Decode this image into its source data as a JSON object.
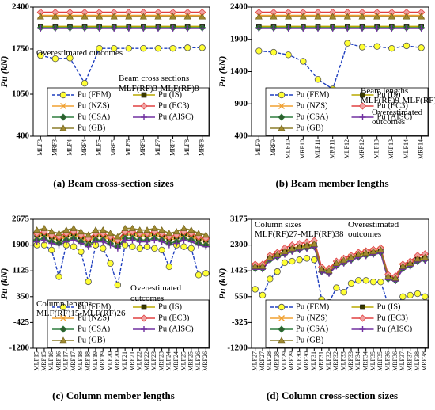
{
  "chart_data": [
    {
      "type": "line",
      "caption": "(a) Beam cross-section sizes",
      "y_label": "Pu (kN)",
      "categories": [
        "MLF3",
        "MRF3",
        "MLF4",
        "MRF4",
        "MLF5",
        "MRF5",
        "MLF6",
        "MRF6",
        "MLF7",
        "MRF7",
        "MLF8",
        "MRF8"
      ],
      "ylim": [
        400,
        2400
      ],
      "yticks": [
        400,
        1050,
        1750,
        2400
      ],
      "annotations": [
        "Overestimated outcomes",
        "Beam cross sections",
        "MLF(RF)3-MLF(RF)8"
      ],
      "series": [
        {
          "name": "Pu (FEM)",
          "color": "#1f3fbf",
          "marker": "circle",
          "values": [
            1650,
            1600,
            1610,
            1220,
            1760,
            1760,
            1760,
            1760,
            1760,
            1760,
            1770,
            1770
          ]
        },
        {
          "name": "Pu (IS)",
          "color": "#b8a800",
          "marker": "square",
          "values": [
            2100,
            2100,
            2100,
            2100,
            2100,
            2100,
            2100,
            2100,
            2100,
            2100,
            2100,
            2100
          ]
        },
        {
          "name": "Pu (NZS)",
          "color": "#f0a030",
          "marker": "x",
          "values": [
            2270,
            2270,
            2270,
            2270,
            2270,
            2270,
            2270,
            2270,
            2270,
            2270,
            2270,
            2270
          ]
        },
        {
          "name": "Pu (EC3)",
          "color": "#e04040",
          "marker": "diamond",
          "values": [
            2320,
            2320,
            2320,
            2320,
            2320,
            2320,
            2320,
            2320,
            2320,
            2320,
            2320,
            2320
          ]
        },
        {
          "name": "Pu (CSA)",
          "color": "#2e7d3e",
          "marker": "diamond",
          "values": [
            2080,
            2080,
            2080,
            2080,
            2080,
            2080,
            2080,
            2080,
            2080,
            2080,
            2080,
            2080
          ]
        },
        {
          "name": "Pu (AISC)",
          "color": "#7030a0",
          "marker": "plus",
          "values": [
            2070,
            2070,
            2070,
            2070,
            2070,
            2070,
            2070,
            2070,
            2070,
            2070,
            2070,
            2070
          ]
        },
        {
          "name": "Pu (GB)",
          "color": "#8b7d2a",
          "marker": "triangle",
          "values": [
            2250,
            2250,
            2250,
            2250,
            2250,
            2250,
            2250,
            2250,
            2250,
            2250,
            2250,
            2250
          ]
        }
      ]
    },
    {
      "type": "line",
      "caption": "(b) Beam member lengths",
      "y_label": "Pu (kN)",
      "categories": [
        "MLF9",
        "MRF9",
        "MLF10",
        "MRF10",
        "MLF11",
        "MRF11",
        "MLF12",
        "MRF12",
        "MLF13",
        "MRF13",
        "MLF14",
        "MRF14"
      ],
      "ylim": [
        400,
        2400
      ],
      "yticks": [
        400,
        900,
        1400,
        1900,
        2400
      ],
      "annotations": [
        "Beam lengths",
        "MLF(RF)9-MLF(RF)14",
        "Overestimated",
        "outcomes"
      ],
      "series": [
        {
          "name": "Pu (FEM)",
          "color": "#1f3fbf",
          "marker": "circle",
          "values": [
            1720,
            1700,
            1660,
            1560,
            1280,
            1130,
            1840,
            1780,
            1790,
            1760,
            1800,
            1770
          ]
        },
        {
          "name": "Pu (IS)",
          "color": "#b8a800",
          "marker": "square",
          "values": [
            2100,
            2100,
            2100,
            2100,
            2100,
            2100,
            2100,
            2100,
            2100,
            2100,
            2100,
            2100
          ]
        },
        {
          "name": "Pu (NZS)",
          "color": "#f0a030",
          "marker": "x",
          "values": [
            2270,
            2270,
            2270,
            2270,
            2270,
            2270,
            2270,
            2270,
            2270,
            2270,
            2270,
            2270
          ]
        },
        {
          "name": "Pu (EC3)",
          "color": "#e04040",
          "marker": "diamond",
          "values": [
            2320,
            2320,
            2320,
            2320,
            2320,
            2320,
            2320,
            2320,
            2320,
            2320,
            2320,
            2320
          ]
        },
        {
          "name": "Pu (CSA)",
          "color": "#2e7d3e",
          "marker": "diamond",
          "values": [
            2080,
            2080,
            2080,
            2080,
            2080,
            2080,
            2080,
            2080,
            2080,
            2080,
            2080,
            2080
          ]
        },
        {
          "name": "Pu (AISC)",
          "color": "#7030a0",
          "marker": "plus",
          "values": [
            2070,
            2070,
            2070,
            2070,
            2070,
            2070,
            2070,
            2070,
            2070,
            2070,
            2070,
            2070
          ]
        },
        {
          "name": "Pu (GB)",
          "color": "#8b7d2a",
          "marker": "triangle",
          "values": [
            2250,
            2250,
            2250,
            2250,
            2250,
            2250,
            2250,
            2250,
            2250,
            2250,
            2250,
            2250
          ]
        }
      ]
    },
    {
      "type": "line",
      "caption": "(c) Column member lengths",
      "y_label": "Pu (kN)",
      "categories": [
        "MLF15",
        "MRF15",
        "MLF16",
        "MRF16",
        "MLF17",
        "MRF17",
        "MLF18",
        "MRF18",
        "MLF19",
        "MRF19",
        "MLF20",
        "MRF20",
        "MLF21",
        "MRF21",
        "MLF22",
        "MRF22",
        "MLF23",
        "MRF23",
        "MLF24",
        "MRF24",
        "MLF25",
        "MRF25",
        "MLF26",
        "MRF26"
      ],
      "ylim": [
        -1200,
        2675
      ],
      "yticks": [
        -1200,
        -425,
        350,
        1125,
        1900,
        2675
      ],
      "annotations": [
        "Column lengths",
        "MLF(RF)15-MLF(RF)26",
        "Overestimated",
        "outcomes"
      ],
      "series": [
        {
          "name": "Pu (FEM)",
          "color": "#1f3fbf",
          "marker": "circle",
          "values": [
            1900,
            1900,
            1750,
            950,
            1900,
            1850,
            1700,
            800,
            1900,
            1800,
            1350,
            700,
            1900,
            1850,
            1800,
            1850,
            1800,
            1750,
            1250,
            1900,
            1850,
            1800,
            1000,
            1050
          ]
        },
        {
          "name": "Pu (IS)",
          "color": "#b8a800",
          "marker": "square",
          "values": [
            2200,
            2250,
            2150,
            2100,
            2200,
            2250,
            2150,
            2050,
            2200,
            2200,
            2100,
            2000,
            2250,
            2250,
            2200,
            2200,
            2250,
            2200,
            2100,
            2150,
            2250,
            2200,
            2100,
            2050
          ]
        },
        {
          "name": "Pu (NZS)",
          "color": "#f0a030",
          "marker": "x",
          "values": [
            2150,
            2200,
            2100,
            2050,
            2150,
            2200,
            2100,
            2000,
            2150,
            2150,
            2050,
            1950,
            2200,
            2200,
            2150,
            2150,
            2200,
            2150,
            2050,
            2100,
            2200,
            2150,
            2050,
            2000
          ]
        },
        {
          "name": "Pu (EC3)",
          "color": "#e04040",
          "marker": "diamond",
          "values": [
            2250,
            2300,
            2200,
            2150,
            2250,
            2300,
            2200,
            2100,
            2250,
            2250,
            2150,
            2050,
            2300,
            2300,
            2250,
            2250,
            2300,
            2250,
            2150,
            2200,
            2300,
            2250,
            2150,
            2100
          ]
        },
        {
          "name": "Pu (CSA)",
          "color": "#2e7d3e",
          "marker": "diamond",
          "values": [
            2050,
            2100,
            2000,
            1950,
            2050,
            2100,
            2000,
            1900,
            2050,
            2050,
            1950,
            1850,
            2100,
            2100,
            2050,
            2050,
            2100,
            2050,
            1950,
            2000,
            2100,
            2050,
            1950,
            1900
          ]
        },
        {
          "name": "Pu (AISC)",
          "color": "#7030a0",
          "marker": "plus",
          "values": [
            2000,
            2050,
            1950,
            1900,
            2000,
            2050,
            1950,
            1850,
            2000,
            2000,
            1900,
            1800,
            2050,
            2050,
            2000,
            2000,
            2050,
            2000,
            1900,
            1950,
            2050,
            2000,
            1900,
            1850
          ]
        },
        {
          "name": "Pu (GB)",
          "color": "#8b7d2a",
          "marker": "triangle",
          "values": [
            2350,
            2400,
            2300,
            2250,
            2350,
            2400,
            2300,
            2200,
            2350,
            2350,
            2250,
            2150,
            2400,
            2400,
            2350,
            2350,
            2400,
            2350,
            2250,
            2300,
            2400,
            2350,
            2250,
            2200
          ]
        }
      ]
    },
    {
      "type": "line",
      "caption": "(d) Column cross-section sizes",
      "y_label": "Pu (kN)",
      "categories": [
        "MLF27",
        "MRF27",
        "MLF28",
        "MRF28",
        "MLF29",
        "MRF29",
        "MLF30",
        "MRF30",
        "MLF31",
        "MRF31",
        "MLF32",
        "MRF32",
        "MLF33",
        "MRF33",
        "MLF34",
        "MRF34",
        "MLF35",
        "MRF35",
        "MLF36",
        "MRF36",
        "MLF37",
        "MRF37",
        "MLF38",
        "MRF38"
      ],
      "ylim": [
        -1200,
        3175
      ],
      "yticks": [
        -1200,
        -325,
        550,
        1425,
        2300,
        3175
      ],
      "annotations": [
        "Column sizes",
        "MLF(RF)27-MLF(RF)38",
        "Overestimated",
        "outcomes"
      ],
      "series": [
        {
          "name": "Pu (FEM)",
          "color": "#1f3fbf",
          "marker": "circle",
          "values": [
            800,
            600,
            1150,
            1400,
            1700,
            1750,
            1800,
            1850,
            1800,
            450,
            350,
            850,
            700,
            1000,
            1100,
            1100,
            1050,
            1050,
            300,
            200,
            550,
            600,
            650,
            550
          ]
        },
        {
          "name": "Pu (IS)",
          "color": "#b8a800",
          "marker": "square",
          "values": [
            1550,
            1550,
            1850,
            1950,
            2050,
            2150,
            2200,
            2250,
            2300,
            1450,
            1400,
            1650,
            1750,
            1850,
            1950,
            2000,
            2050,
            2100,
            1200,
            1150,
            1550,
            1650,
            1800,
            1850
          ]
        },
        {
          "name": "Pu (NZS)",
          "color": "#f0a030",
          "marker": "x",
          "values": [
            1600,
            1600,
            1900,
            2000,
            2100,
            2200,
            2250,
            2300,
            2350,
            1500,
            1450,
            1700,
            1800,
            1900,
            2000,
            2050,
            2100,
            2150,
            1250,
            1200,
            1600,
            1700,
            1850,
            1900
          ]
        },
        {
          "name": "Pu (EC3)",
          "color": "#e04040",
          "marker": "diamond",
          "values": [
            1650,
            1650,
            1950,
            2050,
            2200,
            2300,
            2350,
            2400,
            2450,
            1550,
            1500,
            1750,
            1850,
            1950,
            2050,
            2100,
            2150,
            2200,
            1300,
            1250,
            1650,
            1750,
            1950,
            2000
          ]
        },
        {
          "name": "Pu (CSA)",
          "color": "#2e7d3e",
          "marker": "diamond",
          "values": [
            1500,
            1500,
            1800,
            1900,
            2000,
            2100,
            2150,
            2200,
            2250,
            1400,
            1350,
            1600,
            1700,
            1800,
            1900,
            1950,
            2000,
            2050,
            1150,
            1100,
            1500,
            1600,
            1750,
            1800
          ]
        },
        {
          "name": "Pu (AISC)",
          "color": "#7030a0",
          "marker": "plus",
          "values": [
            1480,
            1480,
            1780,
            1880,
            1980,
            2080,
            2130,
            2180,
            2230,
            1380,
            1330,
            1580,
            1680,
            1780,
            1880,
            1930,
            1980,
            2030,
            1130,
            1080,
            1480,
            1580,
            1730,
            1780
          ]
        },
        {
          "name": "Pu (GB)",
          "color": "#8b7d2a",
          "marker": "triangle",
          "values": [
            1580,
            1580,
            1880,
            1980,
            2080,
            2180,
            2230,
            2280,
            2330,
            1480,
            1430,
            1680,
            1780,
            1880,
            1980,
            2030,
            2080,
            2130,
            1230,
            1180,
            1580,
            1680,
            1830,
            1880
          ]
        }
      ]
    }
  ]
}
